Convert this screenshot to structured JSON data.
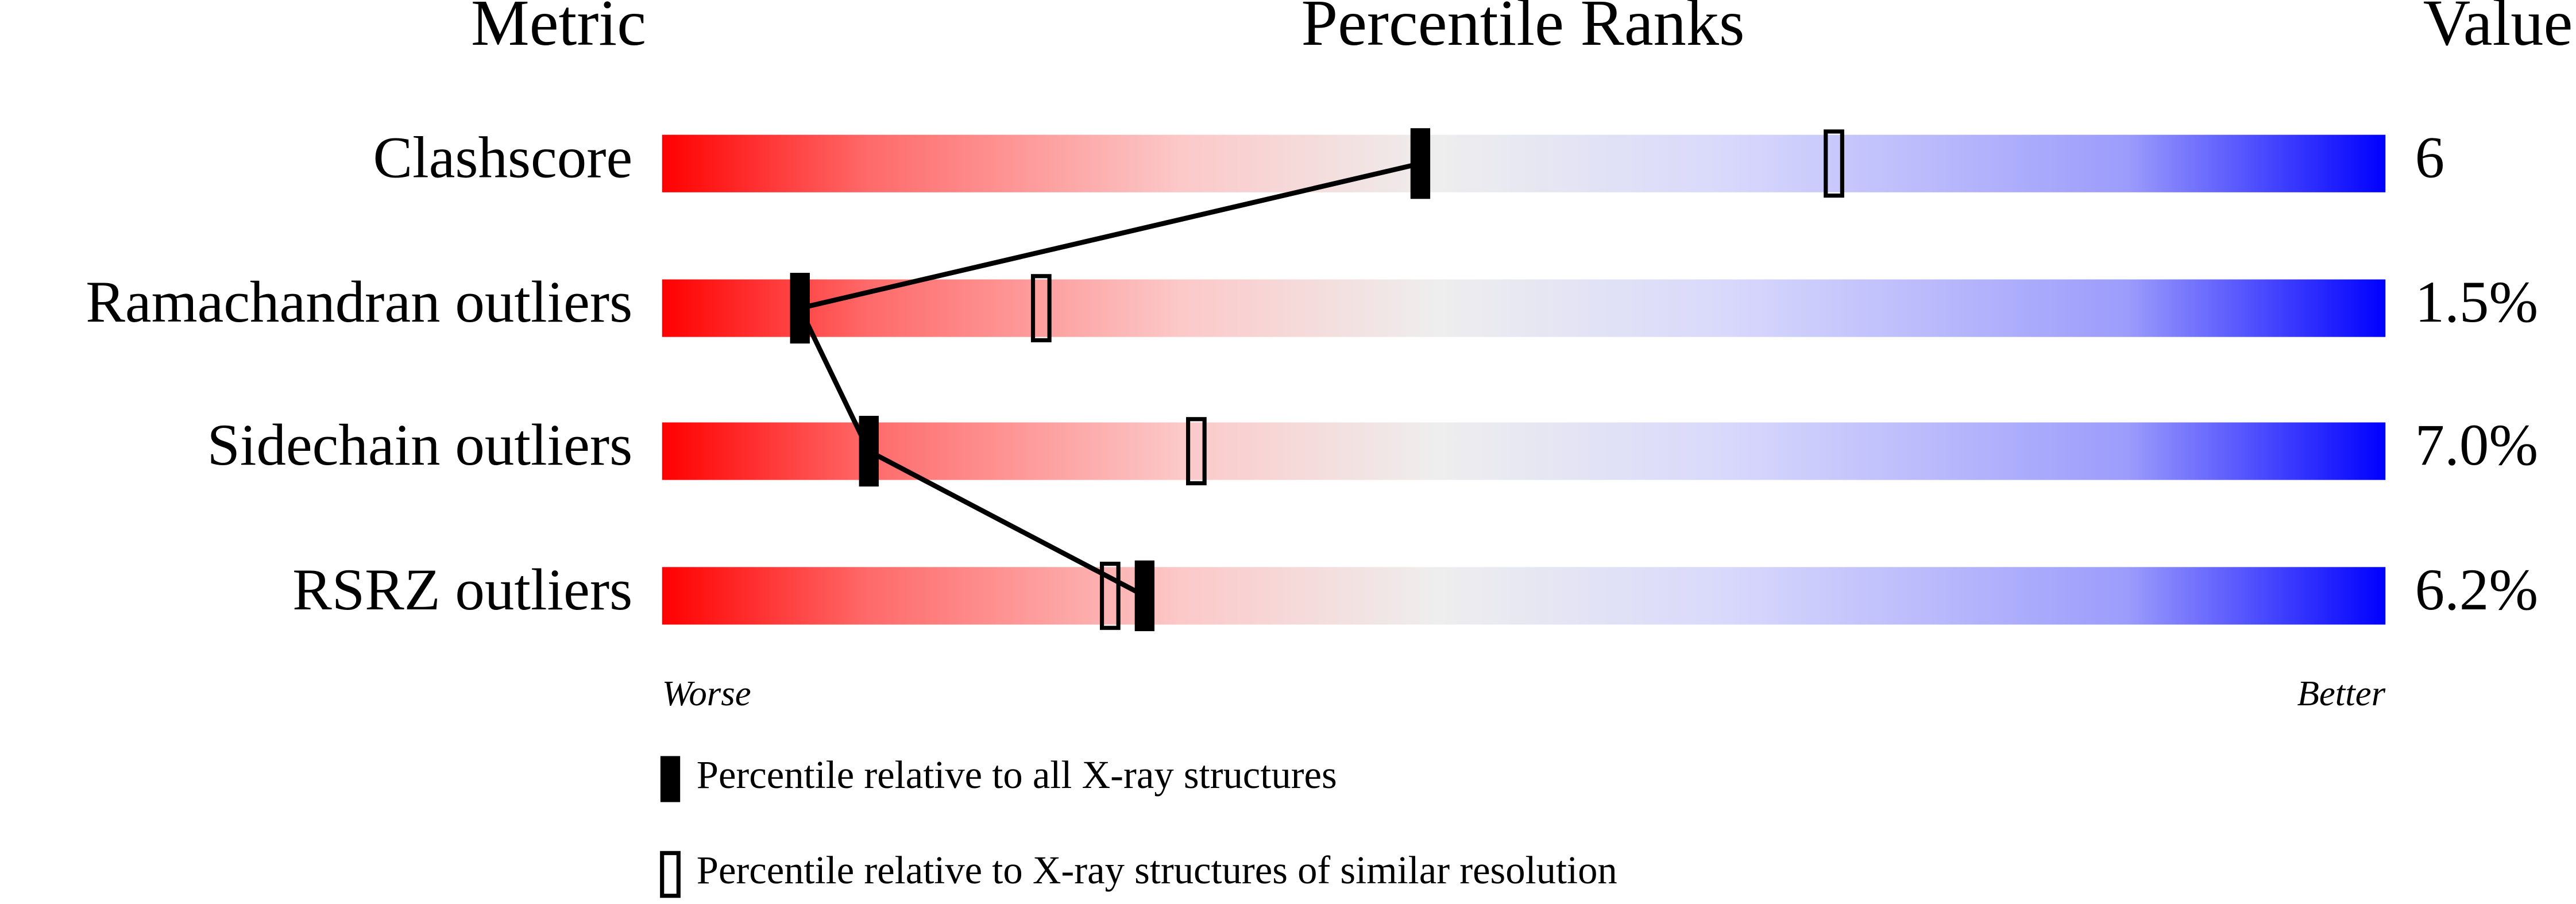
{
  "chart_data": {
    "type": "percentile",
    "headers": {
      "metric": "Metric",
      "ranks": "Percentile Ranks",
      "value": "Value"
    },
    "categories": [
      "Clashscore",
      "Ramachandran outliers",
      "Sidechain outliers",
      "RSRZ outliers"
    ],
    "value_column": [
      "6",
      "1.5%",
      "7.0%",
      "6.2%"
    ],
    "xlim": [
      0,
      100
    ],
    "series": [
      {
        "name": "Percentile relative to all X-ray structures",
        "color": "#000000",
        "style": "filled",
        "values": [
          44,
          8,
          12,
          28
        ]
      },
      {
        "name": "Percentile relative to X-ray structures of similar resolution",
        "color": "#000000",
        "style": "open",
        "values": [
          68,
          22,
          31,
          26
        ]
      }
    ],
    "axis_ends": {
      "low": "Worse",
      "high": "Better"
    }
  }
}
